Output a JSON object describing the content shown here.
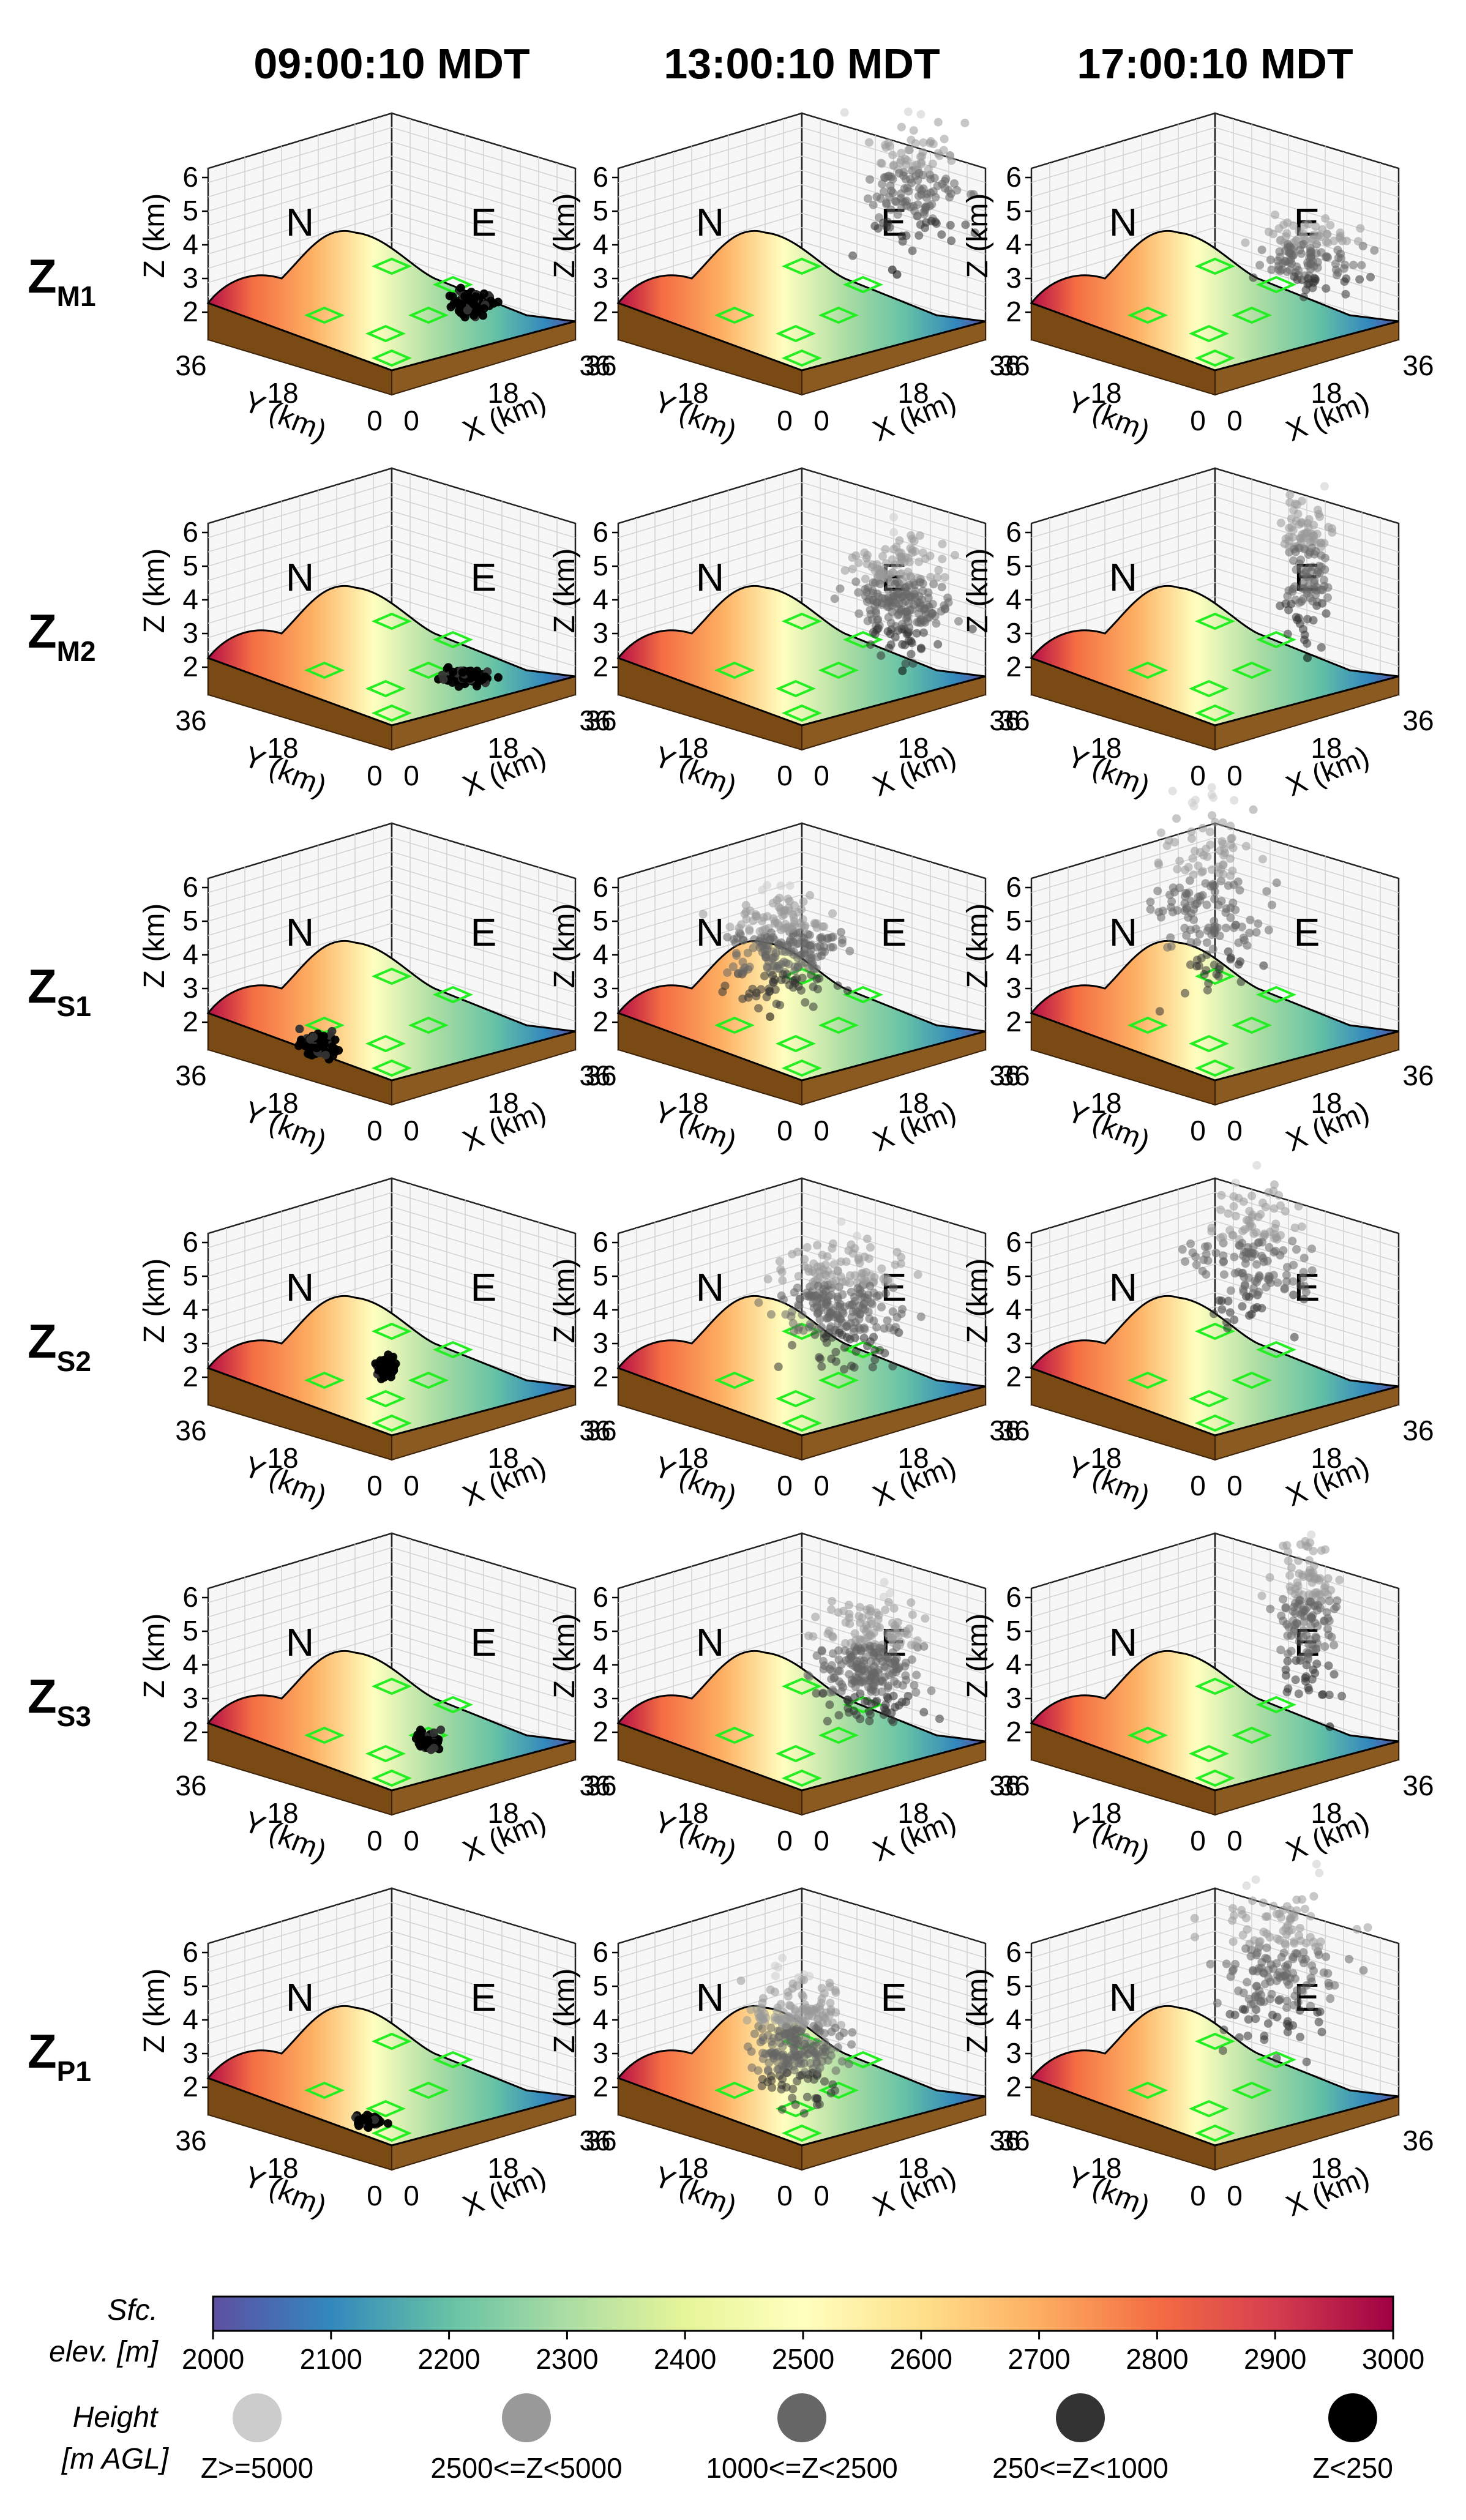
{
  "columns": [
    "09:00:10 MDT",
    "13:00:10 MDT",
    "17:00:10 MDT"
  ],
  "rows": [
    {
      "main": "Z",
      "sub": "M1"
    },
    {
      "main": "Z",
      "sub": "M2"
    },
    {
      "main": "Z",
      "sub": "S1"
    },
    {
      "main": "Z",
      "sub": "S2"
    },
    {
      "main": "Z",
      "sub": "S3"
    },
    {
      "main": "Z",
      "sub": "P1"
    }
  ],
  "axes": {
    "z_label": "Z (km)",
    "y_label": "Y (km)",
    "x_label": "X (km)",
    "z_ticks": [
      "2",
      "3",
      "4",
      "5",
      "6"
    ],
    "y_ticks": [
      "36",
      "18",
      "0"
    ],
    "x_ticks": [
      "0",
      "18",
      "36"
    ],
    "wall_north": "N",
    "wall_east": "E"
  },
  "colorbar": {
    "title_line1": "Sfc.",
    "title_line2": "elev. [m]",
    "ticks": [
      "2000",
      "2100",
      "2200",
      "2300",
      "2400",
      "2500",
      "2600",
      "2700",
      "2800",
      "2900",
      "3000"
    ],
    "range": [
      2000,
      3000
    ],
    "colormap": "spectral_r",
    "stops": [
      "#5e4fa2",
      "#3288bd",
      "#66c2a5",
      "#abdda4",
      "#e6f598",
      "#ffffbf",
      "#fee08b",
      "#fdae61",
      "#f46d43",
      "#d53e4f",
      "#9e0142"
    ]
  },
  "height_legend": {
    "title_line1": "Height",
    "title_line2": "[m AGL]",
    "items": [
      {
        "label": "Z>=5000",
        "color": "#cccccc"
      },
      {
        "label": "2500<=Z<5000",
        "color": "#999999"
      },
      {
        "label": "1000<=Z<2500",
        "color": "#666666"
      },
      {
        "label": "250<=Z<1000",
        "color": "#333333"
      },
      {
        "label": "Z<250",
        "color": "#000000"
      }
    ]
  },
  "plume_source_color": "#000000",
  "target_outline_color": "#22ee22",
  "terrain_base_color": "#7a4a14"
}
